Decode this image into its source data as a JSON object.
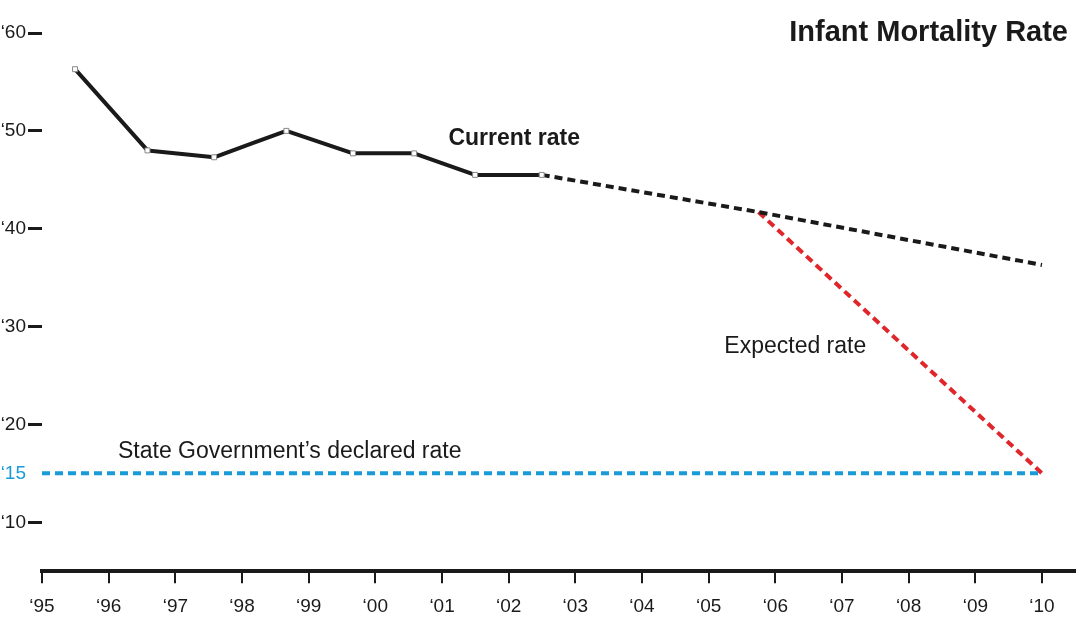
{
  "chart_data": {
    "type": "line",
    "title": "Infant Mortality Rate",
    "series": [
      {
        "name": "Current rate",
        "color": "#1a1a1a",
        "x": [
          "1995-07",
          "1996-08",
          "1997-08",
          "1998-09",
          "1999-09",
          "2000-08",
          "2001-07",
          "2002-07"
        ],
        "values": [
          56.3,
          48.0,
          47.3,
          50.0,
          47.7,
          47.7,
          45.5,
          45.5
        ],
        "marker": "square",
        "line_style": "solid"
      },
      {
        "color": "#1a1a1a",
        "x": [
          "2002-07",
          "2005-10",
          "2010-01"
        ],
        "values": [
          45.5,
          41.7,
          36.3
        ],
        "marker": "none",
        "line_style": "dashed"
      },
      {
        "name": "Expected rate",
        "color": "#e0262b",
        "x": [
          "2005-10",
          "2010-01"
        ],
        "values": [
          41.7,
          15
        ],
        "marker": "none",
        "line_style": "dashed"
      }
    ],
    "ref_lines": [
      {
        "axis": "y",
        "value": 15,
        "label": "State Government’s declared rate",
        "color": "#1a9ad6",
        "line_style": "dashed"
      }
    ],
    "xlim": [
      "1995-01",
      "2010-07"
    ],
    "xticks": [
      {
        "value": "1995",
        "label": "‘95"
      },
      {
        "value": "1996",
        "label": "‘96"
      },
      {
        "value": "1997",
        "label": "‘97"
      },
      {
        "value": "1998",
        "label": "‘98"
      },
      {
        "value": "1999",
        "label": "‘99"
      },
      {
        "value": "2000",
        "label": "‘00"
      },
      {
        "value": "2001",
        "label": "‘01"
      },
      {
        "value": "2002",
        "label": "‘02"
      },
      {
        "value": "2003",
        "label": "‘03"
      },
      {
        "value": "2004",
        "label": "‘04"
      },
      {
        "value": "2005",
        "label": "‘05"
      },
      {
        "value": "2006",
        "label": "‘06"
      },
      {
        "value": "2007",
        "label": "‘07"
      },
      {
        "value": "2008",
        "label": "‘08"
      },
      {
        "value": "2009",
        "label": "‘09"
      },
      {
        "value": "2010",
        "label": "‘10"
      }
    ],
    "ylim": [
      5,
      60
    ],
    "yticks": [
      {
        "value": 10,
        "label": "‘10"
      },
      {
        "value": 15,
        "label": "‘15"
      },
      {
        "value": 20,
        "label": "‘20"
      },
      {
        "value": 30,
        "label": "‘30"
      },
      {
        "value": 40,
        "label": "‘40"
      },
      {
        "value": 50,
        "label": "‘50"
      },
      {
        "value": 60,
        "label": "‘60"
      }
    ],
    "grid": false,
    "legend": false
  }
}
